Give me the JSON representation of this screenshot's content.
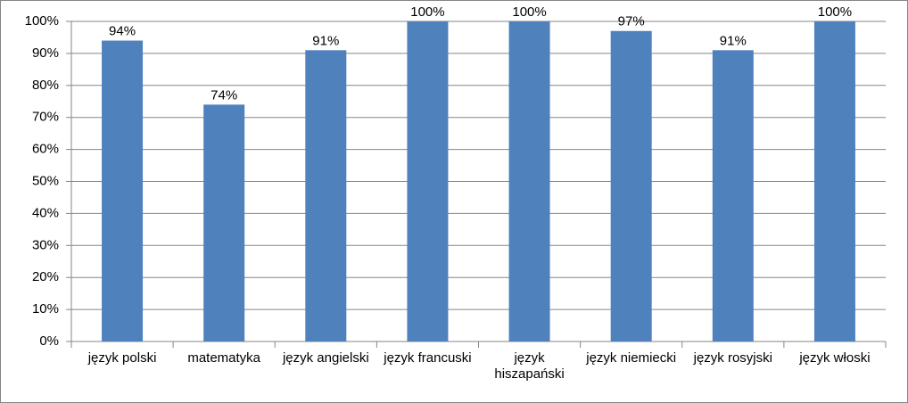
{
  "chart_data": {
    "type": "bar",
    "categories": [
      "język polski",
      "matematyka",
      "język angielski",
      "język francuski",
      "język hiszapański",
      "język niemiecki",
      "język rosyjski",
      "język włoski"
    ],
    "values": [
      94,
      74,
      91,
      100,
      100,
      97,
      91,
      100
    ],
    "value_labels": [
      "94%",
      "74%",
      "91%",
      "100%",
      "100%",
      "97%",
      "91%",
      "100%"
    ],
    "color": "#4f81bd",
    "ylim": [
      0,
      100
    ],
    "yticks": [
      {
        "value": 0,
        "label": "0%"
      },
      {
        "value": 10,
        "label": "10%"
      },
      {
        "value": 20,
        "label": "20%"
      },
      {
        "value": 30,
        "label": "30%"
      },
      {
        "value": 40,
        "label": "40%"
      },
      {
        "value": 50,
        "label": "50%"
      },
      {
        "value": 60,
        "label": "60%"
      },
      {
        "value": 70,
        "label": "70%"
      },
      {
        "value": 80,
        "label": "80%"
      },
      {
        "value": 90,
        "label": "90%"
      },
      {
        "value": 100,
        "label": "100%"
      }
    ],
    "grid": true
  }
}
